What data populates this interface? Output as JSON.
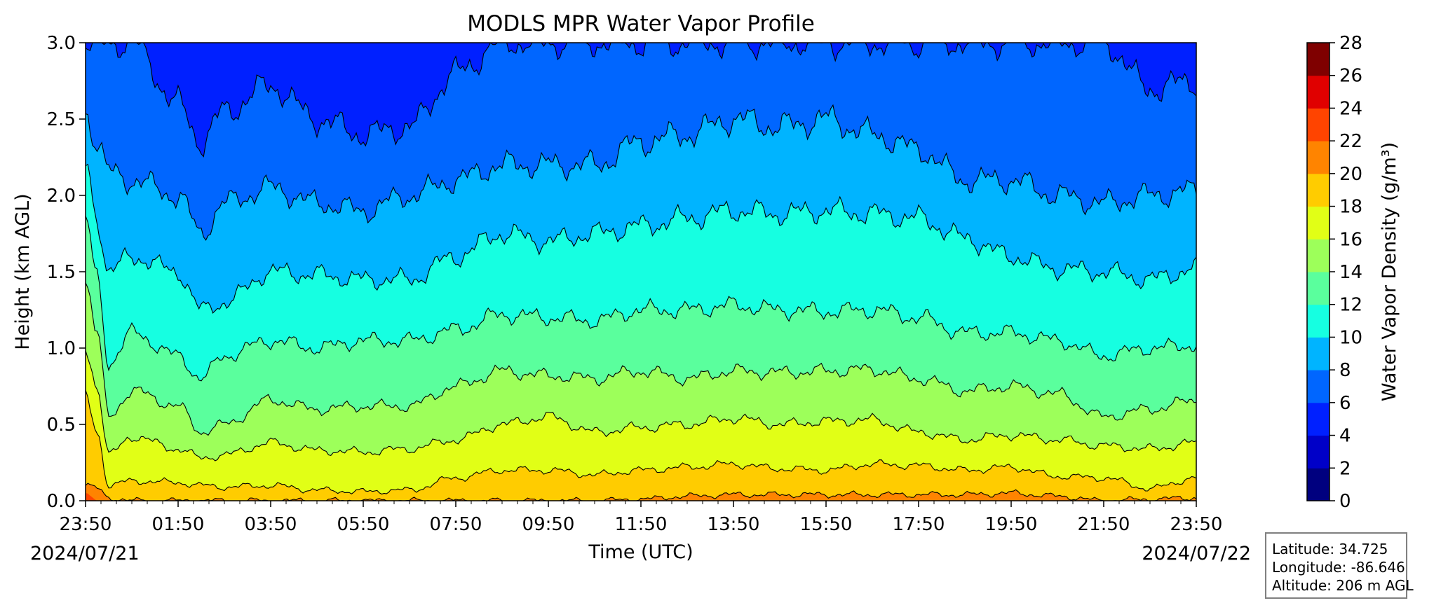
{
  "chart_data": {
    "type": "filled-contour",
    "title": "MODLS MPR Water Vapor Profile",
    "xlabel": "Time (UTC)",
    "ylabel": "Height (km AGL)",
    "colorbar_label": "Water Vapor Density (g/m³)",
    "x_ticks": [
      "23:50",
      "01:50",
      "03:50",
      "05:50",
      "07:50",
      "09:50",
      "11:50",
      "13:50",
      "15:50",
      "17:50",
      "19:50",
      "21:50",
      "23:50"
    ],
    "x_tick_hours": [
      0,
      2,
      4,
      6,
      8,
      10,
      12,
      14,
      16,
      18,
      20,
      22,
      24
    ],
    "x_range_hours": [
      0,
      24
    ],
    "start_date_label": "2024/07/21",
    "end_date_label": "2024/07/22",
    "ylim": [
      0,
      3
    ],
    "y_ticks": [
      "0.0",
      "0.5",
      "1.0",
      "1.5",
      "2.0",
      "2.5",
      "3.0"
    ],
    "y_tick_values": [
      0,
      0.5,
      1,
      1.5,
      2,
      2.5,
      3
    ],
    "levels": [
      0,
      2,
      4,
      6,
      8,
      10,
      12,
      14,
      16,
      18,
      20,
      22,
      24,
      26,
      28
    ],
    "level_labels": [
      "0",
      "2",
      "4",
      "6",
      "8",
      "10",
      "12",
      "14",
      "16",
      "18",
      "20",
      "22",
      "24",
      "26",
      "28"
    ],
    "level_colors": [
      "#00007f",
      "#0000c8",
      "#0020ff",
      "#0066ff",
      "#00b4ff",
      "#16ffe1",
      "#5aff9d",
      "#9dff5a",
      "#e1ff16",
      "#ffcc00",
      "#ff8400",
      "#ff4400",
      "#e00000",
      "#7f0000"
    ],
    "contour_heights_hours": [
      0,
      0.25,
      0.5,
      1,
      2,
      2.5,
      3,
      4,
      5,
      6,
      7,
      8,
      9,
      10,
      11,
      12,
      13,
      14,
      15,
      16,
      17,
      18,
      19,
      20,
      21,
      22,
      23,
      24
    ],
    "contour_heights": [
      {
        "level": 20,
        "values": [
          0.1,
          0.08,
          0.02,
          0,
          0,
          0,
          0,
          0,
          0,
          0,
          0,
          0,
          0,
          0,
          0,
          0.01,
          0.03,
          0.04,
          0.04,
          0.04,
          0.04,
          0.04,
          0.04,
          0.05,
          0.03,
          0,
          0.01,
          0.02
        ]
      },
      {
        "level": 18,
        "values": [
          0.68,
          0.45,
          0.1,
          0.13,
          0.12,
          0.1,
          0.09,
          0.1,
          0.07,
          0.06,
          0.07,
          0.15,
          0.2,
          0.2,
          0.17,
          0.2,
          0.22,
          0.24,
          0.21,
          0.2,
          0.24,
          0.23,
          0.2,
          0.22,
          0.16,
          0.15,
          0.08,
          0.15
        ]
      },
      {
        "level": 16,
        "values": [
          1.0,
          0.75,
          0.3,
          0.42,
          0.34,
          0.28,
          0.3,
          0.38,
          0.33,
          0.32,
          0.34,
          0.4,
          0.5,
          0.55,
          0.45,
          0.48,
          0.5,
          0.54,
          0.5,
          0.52,
          0.53,
          0.45,
          0.4,
          0.43,
          0.4,
          0.36,
          0.34,
          0.38
        ]
      },
      {
        "level": 14,
        "values": [
          1.45,
          1.1,
          0.55,
          0.72,
          0.62,
          0.45,
          0.5,
          0.66,
          0.6,
          0.62,
          0.62,
          0.75,
          0.85,
          0.82,
          0.8,
          0.85,
          0.8,
          0.85,
          0.84,
          0.85,
          0.86,
          0.8,
          0.72,
          0.75,
          0.7,
          0.55,
          0.6,
          0.66
        ]
      },
      {
        "level": 12,
        "values": [
          1.85,
          1.45,
          0.9,
          1.1,
          0.95,
          0.8,
          0.95,
          1.05,
          1.0,
          1.05,
          1.05,
          1.12,
          1.22,
          1.2,
          1.18,
          1.25,
          1.25,
          1.28,
          1.25,
          1.24,
          1.25,
          1.2,
          1.1,
          1.1,
          1.05,
          0.95,
          1.0,
          1.02
        ]
      },
      {
        "level": 10,
        "values": [
          2.2,
          1.85,
          1.5,
          1.6,
          1.5,
          1.25,
          1.3,
          1.5,
          1.48,
          1.45,
          1.45,
          1.6,
          1.75,
          1.7,
          1.75,
          1.8,
          1.85,
          1.9,
          1.88,
          1.9,
          1.88,
          1.85,
          1.72,
          1.6,
          1.52,
          1.5,
          1.45,
          1.52
        ]
      },
      {
        "level": 8,
        "values": [
          2.55,
          2.35,
          2.15,
          2.1,
          2.0,
          1.75,
          1.95,
          2.05,
          1.95,
          1.9,
          2.0,
          2.1,
          2.2,
          2.2,
          2.2,
          2.35,
          2.4,
          2.5,
          2.45,
          2.5,
          2.4,
          2.3,
          2.1,
          2.1,
          2.0,
          1.95,
          2.0,
          2.03
        ]
      },
      {
        "level": 6,
        "values": [
          3.0,
          3.0,
          3.0,
          3.0,
          2.6,
          2.35,
          2.55,
          2.72,
          2.5,
          2.4,
          2.45,
          2.8,
          3.0,
          3.0,
          3.0,
          3.0,
          3.0,
          3.0,
          3.0,
          3.0,
          3.0,
          3.0,
          3.0,
          3.0,
          3.0,
          3.0,
          2.7,
          2.75
        ]
      }
    ]
  },
  "info": {
    "latitude": "Latitude: 34.725",
    "longitude": "Longitude: -86.646",
    "altitude": "Altitude: 206 m AGL"
  }
}
